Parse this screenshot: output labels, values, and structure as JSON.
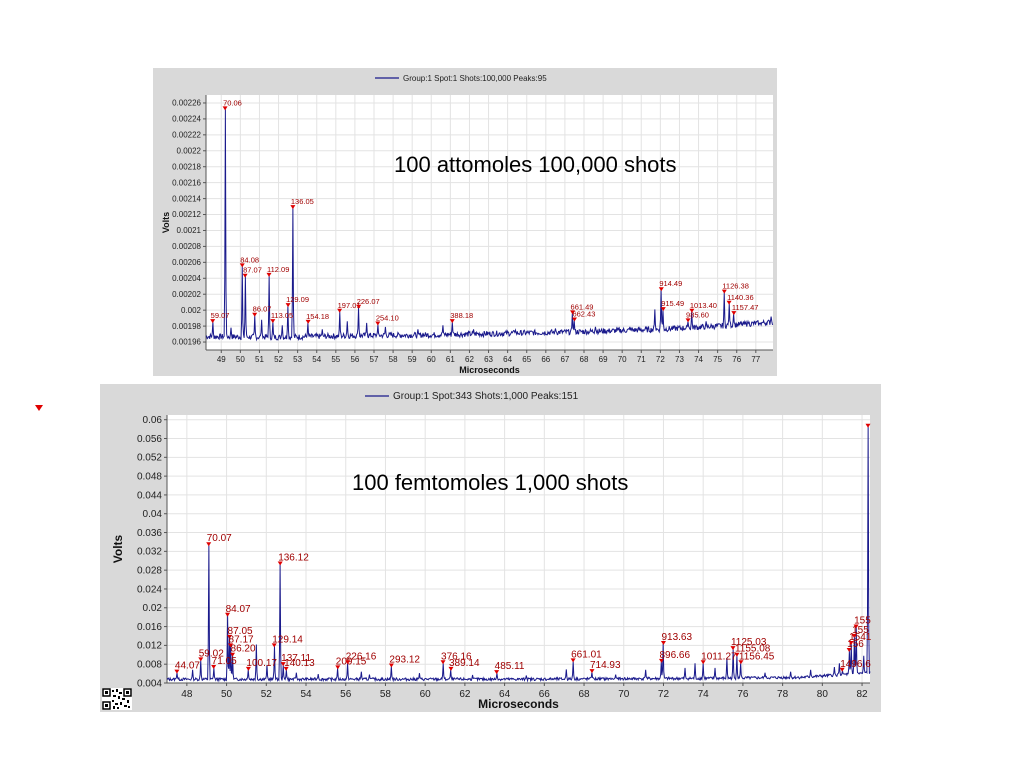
{
  "colors": {
    "trace": "#1a1a8c",
    "peak_label": "#a00000",
    "panel_bg": "#d9d9d9",
    "plot_bg": "#ffffff",
    "grid": "#e3e3e3",
    "marker": "#e00000"
  },
  "overlay_texts": {
    "top": "100 attomoles 100,000 shots",
    "bottom": "100 femtomoles 1,000 shots"
  },
  "icons": {
    "marker": "red-triangle-marker-icon",
    "qr": "qr-code-icon"
  },
  "chart_data": [
    {
      "type": "line",
      "legend": "Group:1 Spot:1 Shots:100,000 Peaks:95",
      "legend_position": "top-center",
      "xlabel": "Microseconds",
      "ylabel": "Volts",
      "grid": true,
      "xlim": [
        48.2,
        77.9
      ],
      "ylim": [
        0.00195,
        0.00227
      ],
      "xticks": [
        49,
        50,
        51,
        52,
        53,
        54,
        55,
        56,
        57,
        58,
        59,
        60,
        61,
        62,
        63,
        64,
        65,
        66,
        67,
        68,
        69,
        70,
        71,
        72,
        73,
        74,
        75,
        76,
        77
      ],
      "xtick_labels": [
        "49",
        "50",
        "51",
        "52",
        "53",
        "54",
        "55",
        "56",
        "57",
        "58",
        "59",
        "60",
        "61",
        "62",
        "63",
        "64",
        "65",
        "66",
        "67",
        "68",
        "69",
        "70",
        "71",
        "72",
        "73",
        "74",
        "75",
        "76",
        "77"
      ],
      "yticks": [
        0.00196,
        0.00198,
        0.002,
        0.00202,
        0.00204,
        0.00206,
        0.00208,
        0.0021,
        0.00212,
        0.00214,
        0.00216,
        0.00218,
        0.0022,
        0.00222,
        0.00224,
        0.00226
      ],
      "ytick_labels": [
        "0.00196",
        "0.00198",
        "0.002",
        "0.00202",
        "0.00204",
        "0.00206",
        "0.00208",
        "0.0021",
        "0.00212",
        "0.00214",
        "0.00216",
        "0.00218",
        "0.0022",
        "0.00222",
        "0.00224",
        "0.00226"
      ],
      "baseline": [
        [
          48.2,
          0.001967
        ],
        [
          52,
          0.001966
        ],
        [
          56,
          0.001968
        ],
        [
          60,
          0.001969
        ],
        [
          64,
          0.001971
        ],
        [
          68,
          0.001973
        ],
        [
          72,
          0.001976
        ],
        [
          75,
          0.00198
        ],
        [
          77.9,
          0.001985
        ]
      ],
      "noise": 3.5e-06,
      "peaks": [
        {
          "x": 48.55,
          "y": 0.001985,
          "label": "59.07"
        },
        {
          "x": 49.2,
          "y": 0.002252,
          "label": "70.06"
        },
        {
          "x": 50.1,
          "y": 0.002055,
          "label": "84.08"
        },
        {
          "x": 50.25,
          "y": 0.002042,
          "label": "87.07"
        },
        {
          "x": 50.75,
          "y": 0.001993,
          "label": "86.07"
        },
        {
          "x": 51.5,
          "y": 0.002043,
          "label": "112.09"
        },
        {
          "x": 51.7,
          "y": 0.001985,
          "label": "113.05"
        },
        {
          "x": 52.5,
          "y": 0.002005,
          "label": "129.09"
        },
        {
          "x": 52.75,
          "y": 0.002128,
          "label": "136.05"
        },
        {
          "x": 53.55,
          "y": 0.001984,
          "label": "154.18"
        },
        {
          "x": 55.2,
          "y": 0.001998,
          "label": "197.01"
        },
        {
          "x": 56.2,
          "y": 0.002003,
          "label": "226.07"
        },
        {
          "x": 57.2,
          "y": 0.001982,
          "label": "254.10"
        },
        {
          "x": 61.1,
          "y": 0.001985,
          "label": "388.18"
        },
        {
          "x": 67.4,
          "y": 0.001996,
          "label": "661.49"
        },
        {
          "x": 67.5,
          "y": 0.001987,
          "label": "662.43"
        },
        {
          "x": 72.05,
          "y": 0.002025,
          "label": "914.49"
        },
        {
          "x": 72.15,
          "y": 0.002,
          "label": "915.49"
        },
        {
          "x": 73.65,
          "y": 0.001998,
          "label": "1013.40"
        },
        {
          "x": 73.45,
          "y": 0.001986,
          "label": "985.60"
        },
        {
          "x": 75.35,
          "y": 0.002022,
          "label": "1126.38"
        },
        {
          "x": 75.6,
          "y": 0.002008,
          "label": "1140.36"
        },
        {
          "x": 75.85,
          "y": 0.001995,
          "label": "1157.47"
        }
      ],
      "unlabeled_peaks": [
        {
          "x": 49.5,
          "y": 0.001978
        },
        {
          "x": 51.1,
          "y": 0.001988
        },
        {
          "x": 52.2,
          "y": 0.001981
        },
        {
          "x": 54.3,
          "y": 0.001976
        },
        {
          "x": 55.6,
          "y": 0.001986
        },
        {
          "x": 56.6,
          "y": 0.001984
        },
        {
          "x": 57.6,
          "y": 0.001979
        },
        {
          "x": 59.3,
          "y": 0.001976
        },
        {
          "x": 60.6,
          "y": 0.001981
        },
        {
          "x": 62.2,
          "y": 0.001976
        },
        {
          "x": 64.4,
          "y": 0.001975
        },
        {
          "x": 66.5,
          "y": 0.001977
        },
        {
          "x": 68.6,
          "y": 0.001979
        },
        {
          "x": 70.4,
          "y": 0.001979
        },
        {
          "x": 71.7,
          "y": 0.002001
        },
        {
          "x": 74.4,
          "y": 0.001986
        },
        {
          "x": 76.6,
          "y": 0.001986
        },
        {
          "x": 77.2,
          "y": 0.001983
        },
        {
          "x": 77.8,
          "y": 0.001992
        }
      ]
    },
    {
      "type": "line",
      "legend": "Group:1 Spot:343 Shots:1,000 Peaks:151",
      "legend_position": "top-center",
      "xlabel": "Microseconds",
      "ylabel": "Volts",
      "grid": true,
      "xlim": [
        47.0,
        82.4
      ],
      "ylim": [
        0.004,
        0.061
      ],
      "xticks": [
        48,
        50,
        52,
        54,
        56,
        58,
        60,
        62,
        64,
        66,
        68,
        70,
        72,
        74,
        76,
        78,
        80,
        82
      ],
      "xtick_labels": [
        "48",
        "50",
        "52",
        "54",
        "56",
        "58",
        "60",
        "62",
        "64",
        "66",
        "68",
        "70",
        "72",
        "74",
        "76",
        "78",
        "80",
        "82"
      ],
      "yticks": [
        0.004,
        0.008,
        0.012,
        0.016,
        0.02,
        0.024,
        0.028,
        0.032,
        0.036,
        0.04,
        0.044,
        0.048,
        0.052,
        0.056,
        0.06
      ],
      "ytick_labels": [
        "0.004",
        "0.008",
        "0.012",
        "0.016",
        "0.02",
        "0.024",
        "0.028",
        "0.032",
        "0.036",
        "0.04",
        "0.044",
        "0.048",
        "0.052",
        "0.056",
        "0.06"
      ],
      "baseline": [
        [
          47,
          0.0048
        ],
        [
          55,
          0.0048
        ],
        [
          65,
          0.0048
        ],
        [
          75,
          0.005
        ],
        [
          79,
          0.0052
        ],
        [
          82.4,
          0.0062
        ]
      ],
      "noise": 0.0003,
      "peaks": [
        {
          "x": 47.5,
          "y": 0.0062,
          "label": "44.07"
        },
        {
          "x": 48.7,
          "y": 0.0088,
          "label": "59.02"
        },
        {
          "x": 49.1,
          "y": 0.0333,
          "label": "70.07"
        },
        {
          "x": 49.35,
          "y": 0.0072,
          "label": "71.05"
        },
        {
          "x": 50.05,
          "y": 0.0183,
          "label": "84.07"
        },
        {
          "x": 50.15,
          "y": 0.0136,
          "label": "87.05"
        },
        {
          "x": 50.2,
          "y": 0.0118,
          "label": "87.17"
        },
        {
          "x": 50.3,
          "y": 0.0098,
          "label": "86.20"
        },
        {
          "x": 51.1,
          "y": 0.0068,
          "label": "100.17"
        },
        {
          "x": 52.4,
          "y": 0.0118,
          "label": "129.14"
        },
        {
          "x": 52.7,
          "y": 0.0292,
          "label": "136.12"
        },
        {
          "x": 52.85,
          "y": 0.0078,
          "label": "137.11"
        },
        {
          "x": 53.0,
          "y": 0.0068,
          "label": "140.13"
        },
        {
          "x": 55.6,
          "y": 0.0071,
          "label": "209.15"
        },
        {
          "x": 56.1,
          "y": 0.0082,
          "label": "226.16"
        },
        {
          "x": 58.3,
          "y": 0.0075,
          "label": "293.12"
        },
        {
          "x": 60.9,
          "y": 0.0082,
          "label": "376.16"
        },
        {
          "x": 61.3,
          "y": 0.0068,
          "label": "389.14"
        },
        {
          "x": 63.6,
          "y": 0.0061,
          "label": "485.11"
        },
        {
          "x": 67.45,
          "y": 0.0086,
          "label": "661.01"
        },
        {
          "x": 68.4,
          "y": 0.0063,
          "label": "714.93"
        },
        {
          "x": 72.0,
          "y": 0.0123,
          "label": "913.63"
        },
        {
          "x": 71.9,
          "y": 0.0085,
          "label": "896.66"
        },
        {
          "x": 74.0,
          "y": 0.0082,
          "label": "1011.27"
        },
        {
          "x": 75.5,
          "y": 0.0112,
          "label": "1125.03"
        },
        {
          "x": 75.7,
          "y": 0.0098,
          "label": "1155.08"
        },
        {
          "x": 75.9,
          "y": 0.0082,
          "label": "1156.45"
        },
        {
          "x": 81.0,
          "y": 0.0066,
          "label": "1496.6"
        },
        {
          "x": 81.35,
          "y": 0.0108,
          "label": "156"
        },
        {
          "x": 81.45,
          "y": 0.0123,
          "label": "1541"
        },
        {
          "x": 81.6,
          "y": 0.0138,
          "label": "155"
        },
        {
          "x": 81.7,
          "y": 0.0158,
          "label": "155"
        },
        {
          "x": 82.3,
          "y": 0.0585,
          "label": ""
        }
      ],
      "unlabeled_peaks": [
        {
          "x": 48.3,
          "y": 0.0068
        },
        {
          "x": 51.5,
          "y": 0.0122
        },
        {
          "x": 52.05,
          "y": 0.0078
        },
        {
          "x": 53.5,
          "y": 0.0062
        },
        {
          "x": 54.6,
          "y": 0.0059
        },
        {
          "x": 56.8,
          "y": 0.0064
        },
        {
          "x": 57.2,
          "y": 0.0058
        },
        {
          "x": 59.7,
          "y": 0.0061
        },
        {
          "x": 62.4,
          "y": 0.0057
        },
        {
          "x": 65.1,
          "y": 0.0056
        },
        {
          "x": 67.1,
          "y": 0.0069
        },
        {
          "x": 69.6,
          "y": 0.0058
        },
        {
          "x": 71.1,
          "y": 0.0068
        },
        {
          "x": 73.1,
          "y": 0.0072
        },
        {
          "x": 73.6,
          "y": 0.0082
        },
        {
          "x": 74.6,
          "y": 0.0072
        },
        {
          "x": 75.2,
          "y": 0.0093
        },
        {
          "x": 77.1,
          "y": 0.0062
        },
        {
          "x": 78.4,
          "y": 0.0064
        },
        {
          "x": 79.4,
          "y": 0.0068
        },
        {
          "x": 80.6,
          "y": 0.0074
        },
        {
          "x": 80.85,
          "y": 0.0082
        },
        {
          "x": 82.1,
          "y": 0.0098
        }
      ]
    }
  ]
}
